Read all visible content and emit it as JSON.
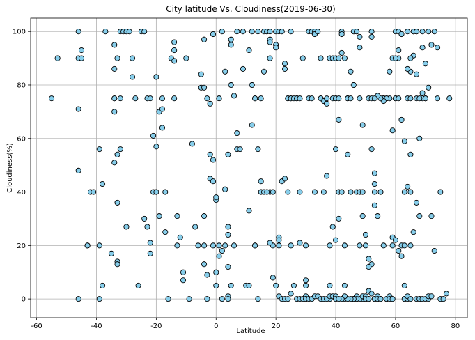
{
  "chart_data": {
    "type": "scatter",
    "title": "City latitude Vs. Cloudiness(2019-06-30)",
    "xlabel": "Latitude",
    "ylabel": "Cloudiness(%)",
    "xlim": [
      -62,
      84
    ],
    "ylim": [
      -7,
      105
    ],
    "xticks": [
      -60,
      -40,
      -20,
      0,
      20,
      40,
      60,
      80
    ],
    "yticks": [
      0,
      20,
      40,
      60,
      80,
      100
    ],
    "grid": true,
    "marker_color": "#87ceeb",
    "marker_edge": "#000000",
    "points": [
      [
        -55,
        75
      ],
      [
        -53,
        90
      ],
      [
        -46,
        100
      ],
      [
        -46,
        90
      ],
      [
        -45,
        93
      ],
      [
        -45,
        90
      ],
      [
        -46,
        71
      ],
      [
        -46,
        48
      ],
      [
        -46,
        0
      ],
      [
        -43,
        20
      ],
      [
        -43,
        20
      ],
      [
        -42,
        40
      ],
      [
        -41,
        40
      ],
      [
        -39,
        56
      ],
      [
        -38,
        43
      ],
      [
        -37,
        100
      ],
      [
        -38,
        5
      ],
      [
        -39,
        20
      ],
      [
        -39,
        0
      ],
      [
        -35,
        17
      ],
      [
        -34,
        75
      ],
      [
        -34,
        95
      ],
      [
        -34,
        86
      ],
      [
        -34,
        75
      ],
      [
        -34,
        70
      ],
      [
        -34,
        51
      ],
      [
        -33,
        54
      ],
      [
        -33,
        36
      ],
      [
        -33,
        14
      ],
      [
        -33,
        13
      ],
      [
        -32,
        100
      ],
      [
        -32,
        56
      ],
      [
        -32,
        75
      ],
      [
        -33,
        90
      ],
      [
        -31,
        100
      ],
      [
        -30,
        100
      ],
      [
        -30,
        27
      ],
      [
        -29,
        100
      ],
      [
        -28,
        83
      ],
      [
        -28,
        90
      ],
      [
        -26,
        5
      ],
      [
        -27,
        75
      ],
      [
        -25,
        100
      ],
      [
        -24,
        30
      ],
      [
        -24,
        100
      ],
      [
        -23,
        75
      ],
      [
        -22,
        75
      ],
      [
        -23,
        27
      ],
      [
        -22,
        21
      ],
      [
        -22,
        17
      ],
      [
        -21,
        40
      ],
      [
        -21,
        61
      ],
      [
        -20,
        57
      ],
      [
        -20,
        40
      ],
      [
        -19,
        31
      ],
      [
        -20,
        83
      ],
      [
        -19,
        70
      ],
      [
        -18,
        75
      ],
      [
        -18,
        64
      ],
      [
        -18,
        71
      ],
      [
        -17,
        40
      ],
      [
        -17,
        25
      ],
      [
        -16,
        0
      ],
      [
        -15,
        90
      ],
      [
        -14,
        96
      ],
      [
        -14,
        93
      ],
      [
        -14,
        89
      ],
      [
        -14,
        75
      ],
      [
        -13,
        31
      ],
      [
        -13,
        20
      ],
      [
        -12,
        23
      ],
      [
        -11,
        10
      ],
      [
        -11,
        7
      ],
      [
        -10,
        90
      ],
      [
        -9,
        0
      ],
      [
        -8,
        58
      ],
      [
        -7,
        27
      ],
      [
        -6,
        20
      ],
      [
        -5,
        84
      ],
      [
        -5,
        79
      ],
      [
        -4,
        97
      ],
      [
        -4,
        79
      ],
      [
        -4,
        31
      ],
      [
        -4,
        20
      ],
      [
        -4,
        13
      ],
      [
        -3,
        9
      ],
      [
        -3,
        0
      ],
      [
        -3,
        75
      ],
      [
        -2,
        73
      ],
      [
        -2,
        54
      ],
      [
        -2,
        45
      ],
      [
        -1,
        44
      ],
      [
        -1,
        99
      ],
      [
        -1,
        52
      ],
      [
        -1,
        20
      ],
      [
        0,
        37
      ],
      [
        0,
        38
      ],
      [
        0,
        10
      ],
      [
        0,
        5
      ],
      [
        1,
        75
      ],
      [
        1,
        75
      ],
      [
        1,
        20
      ],
      [
        1,
        16
      ],
      [
        2,
        18
      ],
      [
        2,
        0
      ],
      [
        2,
        100
      ],
      [
        3,
        85
      ],
      [
        3,
        41
      ],
      [
        3,
        20
      ],
      [
        4,
        27
      ],
      [
        4,
        24
      ],
      [
        4,
        12
      ],
      [
        4,
        54
      ],
      [
        4,
        1
      ],
      [
        4,
        0
      ],
      [
        5,
        97
      ],
      [
        5,
        95
      ],
      [
        5,
        80
      ],
      [
        5,
        5
      ],
      [
        6,
        76
      ],
      [
        6,
        20
      ],
      [
        7,
        100
      ],
      [
        7,
        62
      ],
      [
        7,
        56
      ],
      [
        8,
        56
      ],
      [
        9,
        86
      ],
      [
        9,
        100
      ],
      [
        10,
        5
      ],
      [
        11,
        5
      ],
      [
        11,
        33
      ],
      [
        11,
        93
      ],
      [
        12,
        80
      ],
      [
        12,
        100
      ],
      [
        12,
        65
      ],
      [
        13,
        75
      ],
      [
        13,
        75
      ],
      [
        13,
        20
      ],
      [
        13,
        20
      ],
      [
        14,
        100
      ],
      [
        14,
        56
      ],
      [
        15,
        75
      ],
      [
        15,
        40
      ],
      [
        15,
        40
      ],
      [
        16,
        85
      ],
      [
        16,
        100
      ],
      [
        17,
        100
      ],
      [
        17,
        100
      ],
      [
        18,
        100
      ],
      [
        18,
        97
      ],
      [
        18,
        96
      ],
      [
        18,
        90
      ],
      [
        18,
        40
      ],
      [
        19,
        40
      ],
      [
        19,
        20
      ],
      [
        20,
        100
      ],
      [
        20,
        95
      ],
      [
        20,
        94
      ],
      [
        21,
        100
      ],
      [
        21,
        23
      ],
      [
        21,
        22
      ],
      [
        21,
        20
      ],
      [
        22,
        100
      ],
      [
        22,
        44
      ],
      [
        23,
        45
      ],
      [
        23,
        88
      ],
      [
        23,
        86
      ],
      [
        24,
        75
      ],
      [
        24,
        75
      ],
      [
        24,
        40
      ],
      [
        25,
        100
      ],
      [
        25,
        75
      ],
      [
        25,
        75
      ],
      [
        25,
        20
      ],
      [
        26,
        75
      ],
      [
        27,
        75
      ],
      [
        27,
        75
      ],
      [
        27,
        75
      ],
      [
        28,
        75
      ],
      [
        28,
        40
      ],
      [
        28,
        21
      ],
      [
        29,
        90
      ],
      [
        30,
        5
      ],
      [
        30,
        7
      ],
      [
        30,
        1
      ],
      [
        30,
        0
      ],
      [
        30,
        20
      ],
      [
        31,
        100
      ],
      [
        31,
        75
      ],
      [
        32,
        75
      ],
      [
        32,
        100
      ],
      [
        33,
        100
      ],
      [
        33,
        40
      ],
      [
        33,
        99
      ],
      [
        34,
        100
      ],
      [
        35,
        90
      ],
      [
        35,
        75
      ],
      [
        35,
        75
      ],
      [
        36,
        74
      ],
      [
        36,
        40
      ],
      [
        37,
        73
      ],
      [
        37,
        46
      ],
      [
        38,
        20
      ],
      [
        38,
        5
      ],
      [
        38,
        0
      ],
      [
        39,
        75
      ],
      [
        40,
        75
      ],
      [
        40,
        75
      ],
      [
        41,
        75
      ],
      [
        41,
        40
      ],
      [
        42,
        100
      ],
      [
        42,
        99
      ],
      [
        43,
        5
      ],
      [
        43,
        0
      ],
      [
        44,
        75
      ],
      [
        44,
        75
      ],
      [
        45,
        85
      ],
      [
        46,
        80
      ],
      [
        46,
        0
      ],
      [
        47,
        0
      ],
      [
        47,
        40
      ],
      [
        47,
        100
      ],
      [
        48,
        40
      ],
      [
        48,
        40
      ],
      [
        48,
        94
      ],
      [
        48,
        75
      ],
      [
        49,
        31
      ],
      [
        49,
        0
      ],
      [
        50,
        0
      ],
      [
        51,
        0
      ],
      [
        51,
        15
      ],
      [
        51,
        75
      ],
      [
        52,
        100
      ],
      [
        52,
        75
      ],
      [
        53,
        47
      ],
      [
        53,
        43
      ],
      [
        53,
        40
      ],
      [
        53,
        0
      ],
      [
        54,
        0
      ],
      [
        54,
        1
      ],
      [
        55,
        40
      ],
      [
        55,
        0
      ],
      [
        56,
        75
      ],
      [
        56,
        75
      ],
      [
        56,
        20
      ],
      [
        57,
        0
      ],
      [
        57,
        0
      ],
      [
        58,
        1
      ],
      [
        58,
        0
      ],
      [
        59,
        0
      ],
      [
        59,
        23
      ],
      [
        59,
        20
      ],
      [
        60,
        100
      ],
      [
        60,
        75
      ],
      [
        60,
        75
      ],
      [
        61,
        75
      ],
      [
        61,
        90
      ],
      [
        61,
        100
      ],
      [
        62,
        99
      ],
      [
        62,
        20
      ],
      [
        63,
        40
      ],
      [
        63,
        5
      ],
      [
        63,
        0
      ],
      [
        63,
        0
      ],
      [
        64,
        0
      ],
      [
        64,
        1
      ],
      [
        64,
        100
      ],
      [
        64,
        75
      ],
      [
        65,
        75
      ],
      [
        65,
        40
      ],
      [
        65,
        20
      ],
      [
        65,
        0
      ],
      [
        66,
        100
      ],
      [
        66,
        100
      ],
      [
        67,
        100
      ],
      [
        67,
        100
      ],
      [
        67,
        75
      ],
      [
        67,
        0
      ],
      [
        68,
        0
      ],
      [
        68,
        0
      ],
      [
        68,
        31
      ],
      [
        69,
        100
      ],
      [
        69,
        94
      ],
      [
        69,
        0
      ],
      [
        70,
        75
      ],
      [
        70,
        75
      ],
      [
        70,
        0
      ],
      [
        71,
        0
      ],
      [
        71,
        1
      ],
      [
        72,
        1
      ],
      [
        72,
        31
      ],
      [
        73,
        18
      ],
      [
        73,
        100
      ],
      [
        74,
        94
      ],
      [
        74,
        75
      ],
      [
        75,
        40
      ],
      [
        75,
        0
      ],
      [
        76,
        0
      ],
      [
        77,
        2
      ],
      [
        78,
        75
      ],
      [
        37,
        75
      ],
      [
        38,
        90
      ],
      [
        39,
        90
      ],
      [
        40,
        90
      ],
      [
        41,
        90
      ],
      [
        42,
        92
      ],
      [
        43,
        90
      ],
      [
        44,
        75
      ],
      [
        45,
        75
      ],
      [
        46,
        0
      ],
      [
        47,
        1
      ],
      [
        48,
        0
      ],
      [
        49,
        1
      ],
      [
        50,
        1
      ],
      [
        50,
        0
      ],
      [
        51,
        0
      ],
      [
        52,
        98
      ],
      [
        52,
        56
      ],
      [
        53,
        35
      ],
      [
        54,
        31
      ],
      [
        55,
        40
      ],
      [
        56,
        75
      ],
      [
        57,
        75
      ],
      [
        58,
        85
      ],
      [
        59,
        90
      ],
      [
        60,
        90
      ],
      [
        61,
        93
      ],
      [
        62,
        67
      ],
      [
        63,
        59
      ],
      [
        64,
        42
      ],
      [
        65,
        54
      ],
      [
        66,
        25
      ],
      [
        67,
        36
      ],
      [
        68,
        60
      ],
      [
        69,
        75
      ],
      [
        70,
        75
      ],
      [
        71,
        79
      ],
      [
        71,
        100
      ],
      [
        72,
        95
      ],
      [
        70,
        88
      ],
      [
        69,
        77
      ],
      [
        68,
        75
      ],
      [
        67,
        84
      ],
      [
        66,
        91
      ],
      [
        65,
        90
      ],
      [
        65,
        85
      ],
      [
        64,
        86
      ],
      [
        63,
        20
      ],
      [
        62,
        16
      ],
      [
        61,
        18
      ],
      [
        60,
        22
      ],
      [
        59,
        63
      ],
      [
        58,
        75
      ],
      [
        57,
        75
      ],
      [
        56,
        74
      ],
      [
        55,
        75
      ],
      [
        54,
        76
      ],
      [
        53,
        75
      ],
      [
        52,
        13
      ],
      [
        51,
        12
      ],
      [
        50,
        24
      ],
      [
        49,
        40
      ],
      [
        48,
        20
      ],
      [
        47,
        0
      ],
      [
        46,
        0
      ],
      [
        45,
        0
      ],
      [
        44,
        0
      ],
      [
        43,
        1
      ],
      [
        42,
        0
      ],
      [
        41,
        30
      ],
      [
        40,
        22
      ],
      [
        40,
        56
      ],
      [
        41,
        67
      ],
      [
        42,
        40
      ],
      [
        43,
        20
      ],
      [
        44,
        54
      ],
      [
        45,
        40
      ],
      [
        46,
        100
      ],
      [
        47,
        100
      ],
      [
        48,
        98
      ],
      [
        49,
        65
      ],
      [
        50,
        20
      ],
      [
        51,
        3
      ],
      [
        52,
        2
      ],
      [
        53,
        0
      ],
      [
        54,
        0
      ],
      [
        55,
        0
      ],
      [
        14,
        0
      ],
      [
        15,
        44
      ],
      [
        16,
        40
      ],
      [
        17,
        40
      ],
      [
        18,
        21
      ],
      [
        19,
        8
      ],
      [
        20,
        5
      ],
      [
        21,
        1
      ],
      [
        22,
        0
      ],
      [
        23,
        0
      ],
      [
        24,
        0
      ],
      [
        25,
        2
      ],
      [
        26,
        5
      ],
      [
        27,
        0
      ],
      [
        28,
        0
      ],
      [
        29,
        0
      ],
      [
        30,
        0
      ],
      [
        31,
        0
      ],
      [
        32,
        0
      ],
      [
        33,
        1
      ],
      [
        34,
        1
      ],
      [
        35,
        0
      ],
      [
        36,
        0
      ],
      [
        37,
        0
      ],
      [
        38,
        1
      ],
      [
        39,
        1
      ],
      [
        40,
        1
      ],
      [
        40,
        0
      ],
      [
        41,
        0
      ],
      [
        39,
        27
      ]
    ]
  }
}
